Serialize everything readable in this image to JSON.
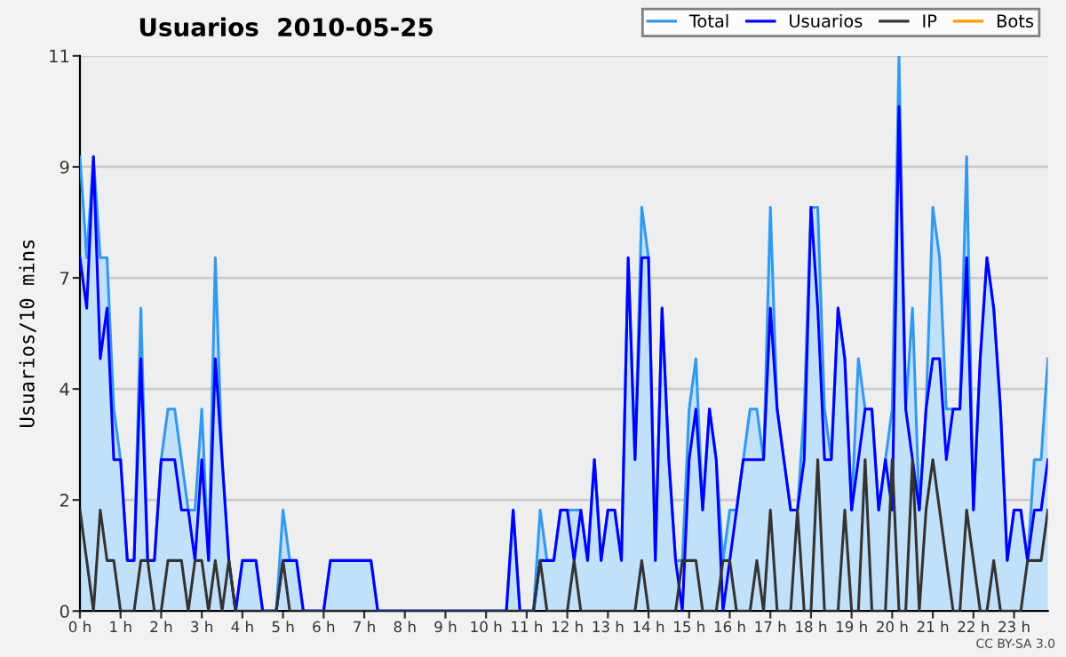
{
  "chart_data": {
    "type": "line",
    "title": "Usuarios  2010-05-25",
    "ylabel": "Usuarios/10 mins",
    "annotations": [
      "CC BY-SA 3.0"
    ],
    "x": [
      0,
      0.167,
      0.333,
      0.5,
      0.667,
      0.833,
      1,
      1.167,
      1.333,
      1.5,
      1.667,
      1.833,
      2,
      2.167,
      2.333,
      2.5,
      2.667,
      2.833,
      3,
      3.167,
      3.333,
      3.5,
      3.667,
      3.833,
      4,
      4.167,
      4.333,
      4.5,
      4.667,
      4.833,
      5,
      5.167,
      5.333,
      5.5,
      5.667,
      5.833,
      6,
      6.167,
      6.333,
      6.5,
      6.667,
      6.833,
      7,
      7.167,
      7.333,
      7.5,
      7.667,
      7.833,
      8,
      8.167,
      8.333,
      8.5,
      8.667,
      8.833,
      9,
      9.167,
      9.333,
      9.5,
      9.667,
      9.833,
      10,
      10.167,
      10.333,
      10.5,
      10.667,
      10.833,
      11,
      11.167,
      11.333,
      11.5,
      11.667,
      11.833,
      12,
      12.167,
      12.333,
      12.5,
      12.667,
      12.833,
      13,
      13.167,
      13.333,
      13.5,
      13.667,
      13.833,
      14,
      14.167,
      14.333,
      14.5,
      14.667,
      14.833,
      15,
      15.167,
      15.333,
      15.5,
      15.667,
      15.833,
      16,
      16.167,
      16.333,
      16.5,
      16.667,
      16.833,
      17,
      17.167,
      17.333,
      17.5,
      17.667,
      17.833,
      18,
      18.167,
      18.333,
      18.5,
      18.667,
      18.833,
      19,
      19.167,
      19.333,
      19.5,
      19.667,
      19.833,
      20,
      20.167,
      20.333,
      20.5,
      20.667,
      20.833,
      21,
      21.167,
      21.333,
      21.5,
      21.667,
      21.833,
      22,
      22.167,
      22.333,
      22.5,
      22.667,
      22.833,
      23,
      23.167,
      23.333,
      23.5,
      23.667,
      23.833
    ],
    "series": [
      {
        "name": "Total",
        "type": "area",
        "color": "#3399ee",
        "values": [
          9,
          7,
          9,
          7,
          7,
          4,
          3,
          1,
          1,
          6,
          1,
          1,
          3,
          4,
          4,
          3,
          2,
          2,
          4,
          1,
          7,
          3,
          1,
          0,
          1,
          1,
          1,
          0,
          0,
          0,
          2,
          1,
          1,
          0,
          0,
          0,
          0,
          1,
          1,
          1,
          1,
          1,
          1,
          1,
          0,
          0,
          0,
          0,
          0,
          0,
          0,
          0,
          0,
          0,
          0,
          0,
          0,
          0,
          0,
          0,
          0,
          0,
          0,
          0,
          2,
          0,
          0,
          0,
          2,
          1,
          1,
          2,
          2,
          2,
          2,
          1,
          3,
          1,
          2,
          2,
          1,
          7,
          3,
          8,
          7,
          1,
          6,
          3,
          1,
          1,
          4,
          5,
          2,
          4,
          3,
          1,
          2,
          2,
          3,
          4,
          4,
          3,
          8,
          4,
          3,
          2,
          2,
          4,
          8,
          8,
          4,
          3,
          6,
          5,
          2,
          5,
          4,
          4,
          2,
          3,
          4,
          11,
          4,
          6,
          2,
          4,
          8,
          7,
          4,
          4,
          4,
          9,
          2,
          5,
          7,
          6,
          4,
          1,
          2,
          2,
          1,
          3,
          3,
          5
        ]
      },
      {
        "name": "Usuarios",
        "color": "#0000ff",
        "values": [
          7,
          6,
          9,
          5,
          6,
          3,
          3,
          1,
          1,
          5,
          1,
          1,
          3,
          3,
          3,
          2,
          2,
          1,
          3,
          1,
          5,
          3,
          1,
          0,
          1,
          1,
          1,
          0,
          0,
          0,
          1,
          1,
          1,
          0,
          0,
          0,
          0,
          1,
          1,
          1,
          1,
          1,
          1,
          1,
          0,
          0,
          0,
          0,
          0,
          0,
          0,
          0,
          0,
          0,
          0,
          0,
          0,
          0,
          0,
          0,
          0,
          0,
          0,
          0,
          2,
          0,
          0,
          0,
          1,
          1,
          1,
          2,
          2,
          1,
          2,
          1,
          3,
          1,
          2,
          2,
          1,
          7,
          3,
          7,
          7,
          1,
          6,
          3,
          1,
          0,
          3,
          4,
          2,
          4,
          3,
          0,
          1,
          2,
          3,
          3,
          3,
          3,
          6,
          4,
          3,
          2,
          2,
          3,
          8,
          6,
          3,
          3,
          6,
          5,
          2,
          3,
          4,
          4,
          2,
          3,
          2,
          10,
          4,
          3,
          2,
          4,
          5,
          5,
          3,
          4,
          4,
          7,
          2,
          5,
          7,
          6,
          4,
          1,
          2,
          2,
          1,
          2,
          2,
          3
        ]
      },
      {
        "name": "IP",
        "color": "#333333",
        "values": [
          2,
          1,
          0,
          2,
          1,
          1,
          0,
          0,
          0,
          1,
          1,
          0,
          0,
          1,
          1,
          1,
          0,
          1,
          1,
          0,
          1,
          0,
          1,
          0,
          0,
          0,
          0,
          0,
          0,
          0,
          1,
          0,
          0,
          0,
          0,
          0,
          0,
          0,
          0,
          0,
          0,
          0,
          0,
          0,
          0,
          0,
          0,
          0,
          0,
          0,
          0,
          0,
          0,
          0,
          0,
          0,
          0,
          0,
          0,
          0,
          0,
          0,
          0,
          0,
          0,
          0,
          0,
          0,
          1,
          0,
          0,
          0,
          0,
          1,
          0,
          0,
          0,
          0,
          0,
          0,
          0,
          0,
          0,
          1,
          0,
          0,
          0,
          0,
          0,
          1,
          1,
          1,
          0,
          0,
          0,
          1,
          1,
          0,
          0,
          0,
          1,
          0,
          2,
          0,
          0,
          0,
          2,
          0,
          0,
          3,
          0,
          0,
          0,
          2,
          0,
          0,
          3,
          0,
          0,
          0,
          3,
          0,
          0,
          3,
          0,
          2,
          3,
          2,
          1,
          0,
          0,
          2,
          1,
          0,
          0,
          1,
          0,
          0,
          0,
          0,
          1,
          1,
          1,
          2
        ]
      },
      {
        "name": "Bots",
        "color": "#ff9900",
        "values": [
          null,
          null,
          null,
          null,
          null,
          null,
          null,
          null,
          null,
          null,
          null,
          null,
          null,
          null,
          null,
          null,
          null,
          null,
          null,
          null,
          null,
          null,
          null,
          null,
          null,
          null,
          null,
          null,
          null,
          null,
          null,
          null,
          null,
          null,
          null,
          null,
          null,
          null,
          null,
          null,
          null,
          null,
          null,
          null,
          null,
          null,
          null,
          null,
          null,
          null,
          null,
          null,
          null,
          null,
          null,
          null,
          null,
          null,
          null,
          null,
          null,
          null,
          null,
          null,
          null,
          null,
          null,
          null,
          null,
          null,
          null,
          null,
          null,
          null,
          null,
          null,
          null,
          null,
          null,
          null,
          null,
          null,
          null,
          null,
          null,
          null,
          null,
          null,
          null,
          null,
          null,
          null,
          null,
          null,
          null,
          null,
          null,
          null,
          null,
          null,
          null,
          null,
          null,
          null,
          null,
          null,
          null,
          null,
          null,
          null,
          null,
          null,
          null,
          null,
          null,
          null,
          null,
          null,
          null,
          null,
          null,
          null,
          null,
          null,
          null,
          null,
          null,
          null,
          null,
          null,
          null,
          null,
          null,
          null,
          null,
          null,
          null,
          null,
          null,
          null,
          null,
          null,
          null,
          null
        ]
      }
    ],
    "xlim": [
      0,
      23.833
    ],
    "xticks": [
      {
        "value": 0,
        "label": "0 h"
      },
      {
        "value": 1,
        "label": "1 h"
      },
      {
        "value": 2,
        "label": "2 h"
      },
      {
        "value": 3,
        "label": "3 h"
      },
      {
        "value": 4,
        "label": "4 h"
      },
      {
        "value": 5,
        "label": "5 h"
      },
      {
        "value": 6,
        "label": "6 h"
      },
      {
        "value": 7,
        "label": "7 h"
      },
      {
        "value": 8,
        "label": "8 h"
      },
      {
        "value": 9,
        "label": "9 h"
      },
      {
        "value": 10,
        "label": "10 h"
      },
      {
        "value": 11,
        "label": "11 h"
      },
      {
        "value": 12,
        "label": "12 h"
      },
      {
        "value": 13,
        "label": "13 h"
      },
      {
        "value": 14,
        "label": "14 h"
      },
      {
        "value": 15,
        "label": "15 h"
      },
      {
        "value": 16,
        "label": "16 h"
      },
      {
        "value": 17,
        "label": "17 h"
      },
      {
        "value": 18,
        "label": "18 h"
      },
      {
        "value": 19,
        "label": "19 h"
      },
      {
        "value": 20,
        "label": "20 h"
      },
      {
        "value": 21,
        "label": "21 h"
      },
      {
        "value": 22,
        "label": "22 h"
      },
      {
        "value": 23,
        "label": "23 h"
      }
    ],
    "ylim": [
      0,
      11
    ],
    "yticks": [
      0,
      {
        "value": 2.2,
        "label": "2"
      },
      {
        "value": 4.4,
        "label": "4"
      },
      {
        "value": 6.6,
        "label": "7"
      },
      {
        "value": 8.8,
        "label": "9"
      },
      11
    ],
    "grid": "y",
    "legend": "top right",
    "marker": "none",
    "line_style": "solid"
  }
}
